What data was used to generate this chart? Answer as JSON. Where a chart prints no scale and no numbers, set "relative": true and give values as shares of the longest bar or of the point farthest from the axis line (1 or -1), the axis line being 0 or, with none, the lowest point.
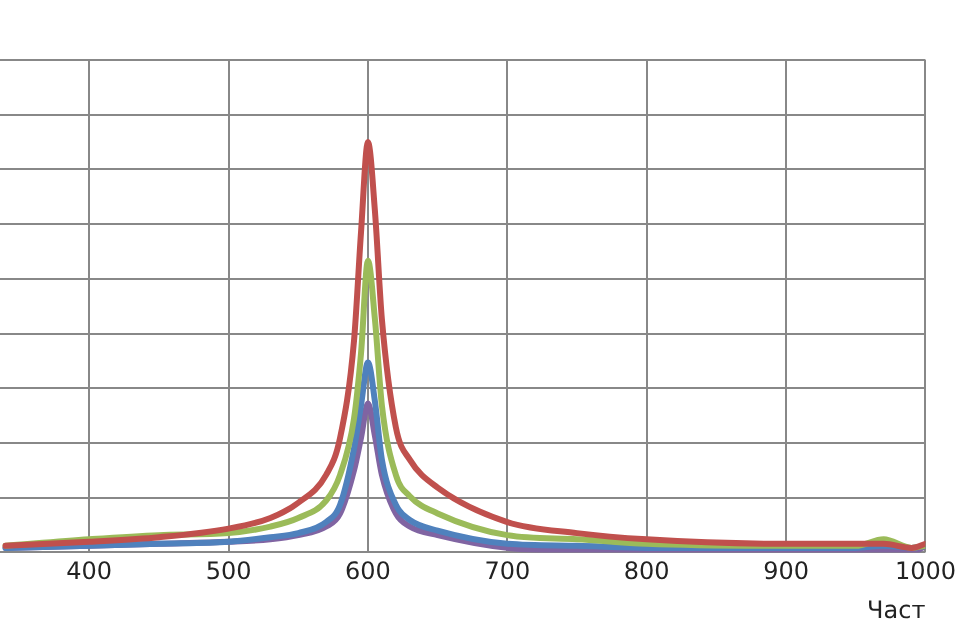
{
  "chart_data": {
    "type": "line",
    "xlabel": "Част",
    "relative": true,
    "grid": true,
    "legend": false,
    "marker": "none",
    "line_style": "solid",
    "tick_labels": "x",
    "x": [
      340,
      400,
      450,
      500,
      530,
      550,
      570,
      580,
      590,
      595,
      600,
      605,
      610,
      620,
      630,
      650,
      700,
      750,
      800,
      900,
      950,
      970,
      990,
      1000
    ],
    "xlim": [
      336,
      1000
    ],
    "xticks": [
      400,
      500,
      600,
      700,
      800,
      900,
      1000
    ],
    "series": [
      {
        "color": "#c0504d",
        "values": [
          0.016,
          0.026,
          0.037,
          0.058,
          0.084,
          0.121,
          0.189,
          0.279,
          0.516,
          0.779,
          1,
          0.832,
          0.568,
          0.305,
          0.226,
          0.158,
          0.074,
          0.047,
          0.032,
          0.021,
          0.021,
          0.021,
          0.011,
          0.021
        ]
      },
      {
        "color": "#9bbb59",
        "values": [
          0.016,
          0.032,
          0.042,
          0.047,
          0.063,
          0.084,
          0.126,
          0.189,
          0.326,
          0.484,
          0.711,
          0.568,
          0.358,
          0.189,
          0.137,
          0.095,
          0.042,
          0.032,
          0.021,
          0.016,
          0.016,
          0.032,
          0.011,
          0.016
        ]
      },
      {
        "color": "#4f81bd",
        "values": [
          0.011,
          0.016,
          0.021,
          0.026,
          0.037,
          0.047,
          0.074,
          0.116,
          0.253,
          0.358,
          0.463,
          0.368,
          0.226,
          0.116,
          0.079,
          0.053,
          0.021,
          0.016,
          0.011,
          0.011,
          0.011,
          0.016,
          0.011,
          0.016
        ]
      },
      {
        "color": "#8064a2",
        "values": [
          0.011,
          0.016,
          0.021,
          0.026,
          0.032,
          0.042,
          0.063,
          0.095,
          0.2,
          0.279,
          0.363,
          0.284,
          0.189,
          0.095,
          0.063,
          0.042,
          0.011,
          0.005,
          0.005,
          0.005,
          0.005,
          0.005,
          0,
          0.016
        ]
      }
    ]
  }
}
